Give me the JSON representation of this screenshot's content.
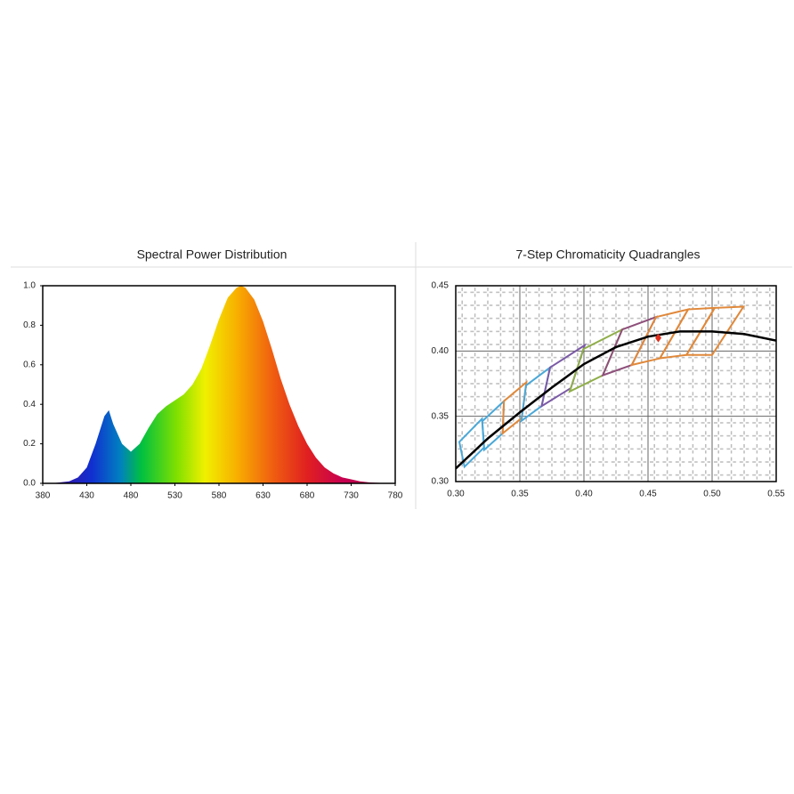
{
  "chart_data": [
    {
      "type": "area",
      "title": "Spectral Power Distribution",
      "x": [
        380,
        390,
        400,
        410,
        420,
        430,
        440,
        450,
        455,
        460,
        470,
        480,
        490,
        500,
        510,
        520,
        530,
        540,
        550,
        560,
        570,
        580,
        590,
        600,
        605,
        610,
        620,
        630,
        640,
        650,
        660,
        670,
        680,
        690,
        700,
        710,
        720,
        730,
        740,
        750,
        760,
        770,
        780
      ],
      "values": [
        0,
        0,
        0.005,
        0.01,
        0.03,
        0.08,
        0.2,
        0.34,
        0.37,
        0.3,
        0.2,
        0.16,
        0.2,
        0.28,
        0.35,
        0.39,
        0.42,
        0.45,
        0.5,
        0.58,
        0.7,
        0.83,
        0.94,
        0.99,
        1.0,
        0.99,
        0.93,
        0.82,
        0.68,
        0.53,
        0.4,
        0.29,
        0.2,
        0.13,
        0.08,
        0.05,
        0.03,
        0.02,
        0.01,
        0.005,
        0.003,
        0.001,
        0
      ],
      "xlim": [
        380,
        780
      ],
      "xticks": [
        380,
        430,
        480,
        530,
        580,
        630,
        680,
        730,
        780
      ],
      "ylim": [
        0,
        1
      ],
      "yticks": [
        {
          "value": 0,
          "label": "0.0"
        },
        0.2,
        0.4,
        0.6,
        0.8,
        {
          "value": 1,
          "label": "1.0"
        }
      ]
    },
    {
      "type": "chromaticity",
      "title": "7-Step Chromaticity Quadrangles",
      "xlim": [
        0.3,
        0.55
      ],
      "xticks": [
        {
          "value": 0.3,
          "label": "0.30"
        },
        0.35,
        {
          "value": 0.4,
          "label": "0.40"
        },
        0.45,
        {
          "value": 0.5,
          "label": "0.50"
        },
        0.55
      ],
      "ylim": [
        0.3,
        0.45
      ],
      "yticks": [
        {
          "value": 0.3,
          "label": "0.30"
        },
        0.35,
        {
          "value": 0.4,
          "label": "0.40"
        },
        0.45
      ],
      "grid": true,
      "locus": {
        "color": "#000000",
        "x": [
          0.3,
          0.325,
          0.35,
          0.375,
          0.4,
          0.425,
          0.45,
          0.475,
          0.5,
          0.525,
          0.55
        ],
        "y": [
          0.31,
          0.333,
          0.353,
          0.372,
          0.39,
          0.403,
          0.411,
          0.415,
          0.415,
          0.413,
          0.408
        ]
      },
      "point": {
        "color": "#e0301e",
        "x": 0.458,
        "y": 0.41
      },
      "quadrangles": [
        {
          "color": "#4aa8d8",
          "x": [
            0.3205,
            0.3028,
            0.3068,
            0.3221
          ],
          "y": [
            0.3481,
            0.3304,
            0.3113,
            0.3261
          ]
        },
        {
          "color": "#4aa8d8",
          "x": [
            0.3376,
            0.3207,
            0.3222,
            0.3366
          ],
          "y": [
            0.3616,
            0.3462,
            0.3243,
            0.3369
          ]
        },
        {
          "color": "#e0883a",
          "x": [
            0.3551,
            0.3376,
            0.3366,
            0.3515
          ],
          "y": [
            0.376,
            0.3616,
            0.3369,
            0.3487
          ]
        },
        {
          "color": "#4aa8d8",
          "x": [
            0.3736,
            0.3548,
            0.3512,
            0.367
          ],
          "y": [
            0.3874,
            0.3736,
            0.3465,
            0.3578
          ]
        },
        {
          "color": "#7b5aa6",
          "x": [
            0.4006,
            0.3736,
            0.367,
            0.3898
          ],
          "y": [
            0.4044,
            0.3874,
            0.3578,
            0.3716
          ]
        },
        {
          "color": "#8fae4a",
          "x": [
            0.4299,
            0.3996,
            0.3889,
            0.4147
          ],
          "y": [
            0.4165,
            0.4015,
            0.369,
            0.3814
          ]
        },
        {
          "color": "#8e4f7a",
          "x": [
            0.4562,
            0.4299,
            0.4147,
            0.4373
          ],
          "y": [
            0.426,
            0.4165,
            0.3814,
            0.3893
          ]
        },
        {
          "color": "#e0883a",
          "x": [
            0.4813,
            0.4562,
            0.4373,
            0.4593
          ],
          "y": [
            0.4319,
            0.426,
            0.3893,
            0.3944
          ]
        },
        {
          "color": "#e0883a",
          "x": [
            0.502,
            0.4813,
            0.4593,
            0.48
          ],
          "y": [
            0.433,
            0.4319,
            0.3944,
            0.397
          ]
        },
        {
          "color": "#e0883a",
          "x": [
            0.5245,
            0.502,
            0.48,
            0.5
          ],
          "y": [
            0.434,
            0.433,
            0.397,
            0.397
          ]
        }
      ]
    }
  ]
}
